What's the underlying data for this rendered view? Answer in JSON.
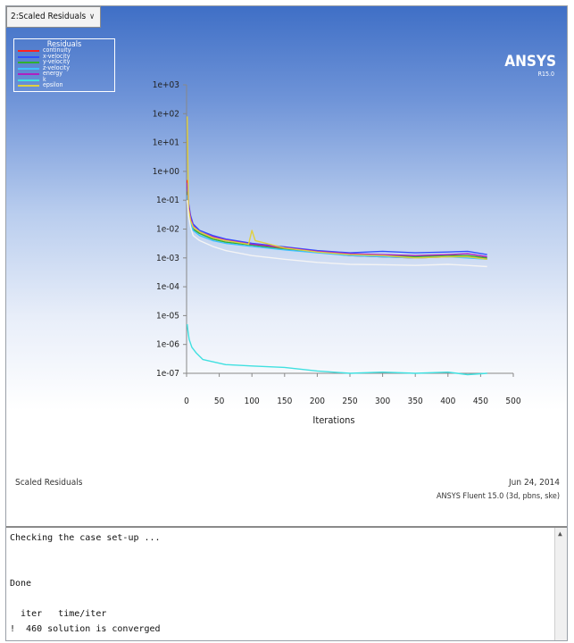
{
  "dropdown": {
    "value": "2:Scaled Residuals",
    "arrow_icon": "chevron-down-icon"
  },
  "legend": {
    "title": "Residuals",
    "items": [
      {
        "label": "continuity",
        "color": "#ff2020"
      },
      {
        "label": "x-velocity",
        "color": "#3050ff"
      },
      {
        "label": "y-velocity",
        "color": "#30b030"
      },
      {
        "label": "z-velocity",
        "color": "#40c0ff"
      },
      {
        "label": "energy",
        "color": "#b020c0"
      },
      {
        "label": "k",
        "color": "#40e0e0"
      },
      {
        "label": "epsilon",
        "color": "#e0d040"
      }
    ]
  },
  "brand": {
    "logo": "ANSYS",
    "version": "R15.0"
  },
  "chart_data": {
    "type": "line",
    "xlabel": "Iterations",
    "ylabel": "",
    "xlim": [
      0,
      500
    ],
    "ylim_exp": [
      -7,
      3
    ],
    "yscale": "log",
    "x_ticks": [
      0,
      50,
      100,
      150,
      200,
      250,
      300,
      350,
      400,
      450,
      500
    ],
    "x_tick_labels": [
      "0",
      "50",
      "100",
      "150",
      "200",
      "250",
      "300",
      "350",
      "400",
      "450",
      "500"
    ],
    "y_tick_labels": [
      "1e+03",
      "1e+02",
      "1e+01",
      "1e+00",
      "1e-01",
      "1e-02",
      "1e-03",
      "1e-04",
      "1e-05",
      "1e-06",
      "1e-07"
    ],
    "y_tick_exps": [
      3,
      2,
      1,
      0,
      -1,
      -2,
      -3,
      -4,
      -5,
      -6,
      -7
    ],
    "series": [
      {
        "name": "continuity",
        "color": "#ff2020",
        "x": [
          1,
          3,
          6,
          10,
          20,
          40,
          60,
          100,
          150,
          200,
          250,
          300,
          350,
          400,
          430,
          460
        ],
        "y": [
          0.5,
          0.06,
          0.02,
          0.012,
          0.008,
          0.005,
          0.004,
          0.003,
          0.0022,
          0.0016,
          0.0012,
          0.0011,
          0.001,
          0.0011,
          0.0012,
          0.0009
        ]
      },
      {
        "name": "x-velocity",
        "color": "#3050ff",
        "x": [
          1,
          3,
          6,
          10,
          20,
          40,
          60,
          100,
          150,
          200,
          250,
          300,
          350,
          400,
          430,
          460
        ],
        "y": [
          0.3,
          0.08,
          0.03,
          0.015,
          0.009,
          0.006,
          0.0045,
          0.0032,
          0.0024,
          0.0018,
          0.0015,
          0.0017,
          0.0015,
          0.0016,
          0.0017,
          0.0013
        ]
      },
      {
        "name": "y-velocity",
        "color": "#30b030",
        "x": [
          1,
          3,
          6,
          10,
          20,
          40,
          60,
          100,
          150,
          200,
          250,
          300,
          350,
          400,
          430,
          460
        ],
        "y": [
          0.2,
          0.05,
          0.02,
          0.01,
          0.007,
          0.0045,
          0.0035,
          0.0028,
          0.002,
          0.0016,
          0.0013,
          0.0012,
          0.0011,
          0.0012,
          0.0012,
          0.001
        ]
      },
      {
        "name": "z-velocity",
        "color": "#40c0ff",
        "x": [
          1,
          3,
          6,
          10,
          20,
          40,
          60,
          100,
          150,
          200,
          250,
          300,
          350,
          400,
          430,
          460
        ],
        "y": [
          0.15,
          0.04,
          0.018,
          0.009,
          0.006,
          0.004,
          0.0032,
          0.0025,
          0.0019,
          0.0015,
          0.0012,
          0.0011,
          0.001,
          0.0011,
          0.001,
          0.0009
        ]
      },
      {
        "name": "energy",
        "color": "#b020c0",
        "x": [
          1,
          3,
          6,
          10,
          20,
          40,
          60,
          100,
          150,
          200,
          250,
          300,
          350,
          400,
          430,
          460
        ],
        "y": [
          0.4,
          0.07,
          0.025,
          0.013,
          0.008,
          0.0055,
          0.0042,
          0.003,
          0.0023,
          0.0017,
          0.0014,
          0.0013,
          0.0012,
          0.0013,
          0.0014,
          0.0011
        ]
      },
      {
        "name": "k",
        "color": "#40e0e0",
        "x": [
          1,
          2,
          4,
          8,
          15,
          25,
          40,
          60,
          100,
          150,
          200,
          250,
          300,
          350,
          400,
          430,
          460
        ],
        "y": [
          5e-06,
          3e-06,
          1.5e-06,
          8e-07,
          5e-07,
          3e-07,
          2.5e-07,
          2e-07,
          1.8e-07,
          1.6e-07,
          1.2e-07,
          1e-07,
          1.1e-07,
          1e-07,
          1.1e-07,
          9e-08,
          1e-07
        ]
      },
      {
        "name": "epsilon",
        "color": "#e0d040",
        "x": [
          1,
          3,
          6,
          10,
          20,
          40,
          60,
          95,
          100,
          105,
          150,
          200,
          250,
          300,
          350,
          400,
          430,
          460
        ],
        "y": [
          80,
          0.05,
          0.02,
          0.012,
          0.008,
          0.005,
          0.004,
          0.003,
          0.009,
          0.004,
          0.0022,
          0.0016,
          0.0013,
          0.0012,
          0.001,
          0.0011,
          0.0011,
          0.0009
        ]
      },
      {
        "name": "",
        "color": "#f4f4f4",
        "x": [
          1,
          3,
          6,
          10,
          20,
          40,
          60,
          100,
          150,
          200,
          250,
          300,
          350,
          400,
          430,
          460
        ],
        "y": [
          0.1,
          0.03,
          0.012,
          0.006,
          0.004,
          0.0025,
          0.0018,
          0.0012,
          0.0009,
          0.0007,
          0.0006,
          0.00058,
          0.00055,
          0.0006,
          0.00055,
          0.0005
        ]
      }
    ]
  },
  "footer": {
    "left": "Scaled Residuals",
    "date": "Jun 24, 2014",
    "solver": "ANSYS Fluent 15.0 (3d, pbns, ske)"
  },
  "console": {
    "lines": [
      "Checking the case set-up ...",
      "",
      "",
      "Done",
      "",
      "  iter   time/iter",
      "!  460 solution is converged"
    ]
  }
}
